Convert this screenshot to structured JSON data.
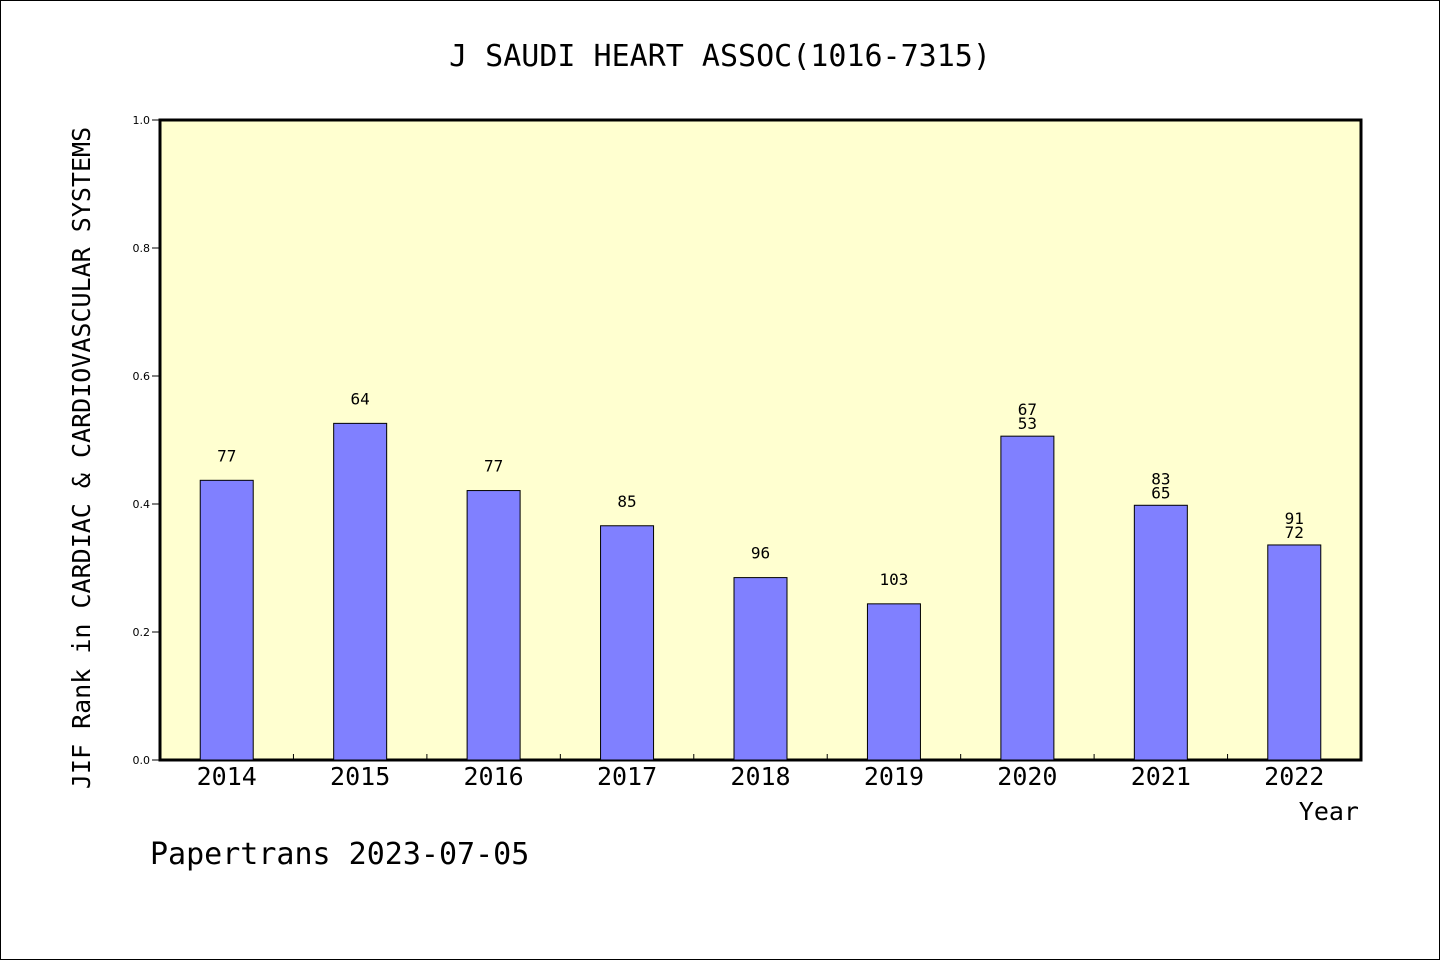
{
  "chart_data": {
    "type": "bar",
    "title": "J SAUDI HEART ASSOC(1016-7315)",
    "xlabel": "Year",
    "ylabel": "JIF Rank in CARDIAC & CARDIOVASCULAR SYSTEMS",
    "categories": [
      "2014",
      "2015",
      "2016",
      "2017",
      "2018",
      "2019",
      "2020",
      "2021",
      "2022"
    ],
    "values": [
      0.437,
      0.526,
      0.421,
      0.366,
      0.285,
      0.244,
      0.506,
      0.398,
      0.336
    ],
    "bar_labels": [
      [
        "77"
      ],
      [
        "64"
      ],
      [
        "77"
      ],
      [
        "85"
      ],
      [
        "96"
      ],
      [
        "103"
      ],
      [
        "67",
        "53"
      ],
      [
        "83",
        "65"
      ],
      [
        "91",
        "72"
      ]
    ],
    "ylim": [
      0,
      1.0
    ],
    "yticks": [
      "0.0",
      "0.2",
      "0.4",
      "0.6",
      "0.8",
      "1.0"
    ],
    "grid": false,
    "colors": {
      "bar": "#8080ff",
      "plot_bg": "#ffffd0",
      "axis": "#000000"
    }
  },
  "footer": {
    "watermark": "Papertrans 2023-07-05"
  }
}
